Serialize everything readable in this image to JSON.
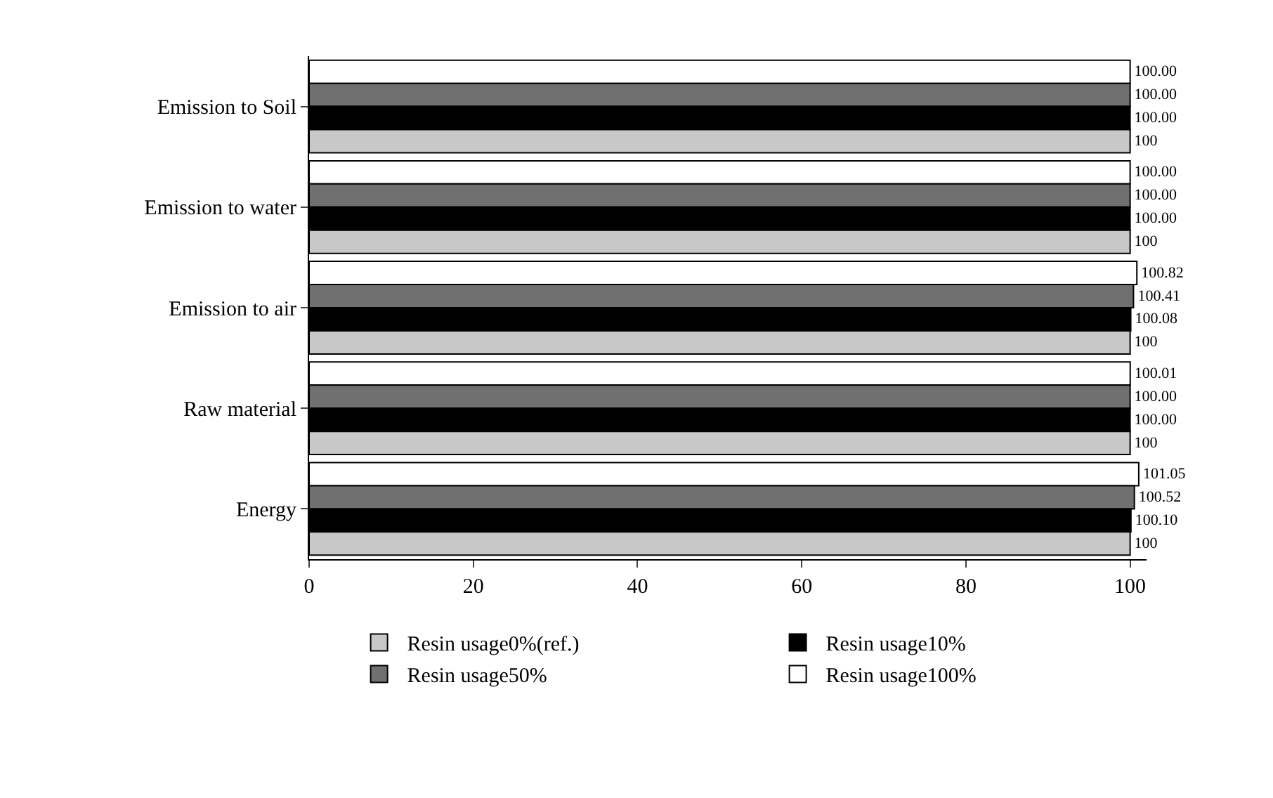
{
  "chart_data": {
    "type": "bar",
    "orientation": "horizontal",
    "categories": [
      "Emission to Soil",
      "Emission to water",
      "Emission to air",
      "Raw material",
      "Energy"
    ],
    "series": [
      {
        "name": "Resin usage100%",
        "color": "#ffffff",
        "values": [
          100.0,
          100.0,
          100.82,
          100.01,
          101.05
        ],
        "value_labels": [
          "100.00",
          "100.00",
          "100.82",
          "100.01",
          "101.05"
        ]
      },
      {
        "name": "Resin usage50%",
        "color": "#707070",
        "values": [
          100.0,
          100.0,
          100.41,
          100.0,
          100.52
        ],
        "value_labels": [
          "100.00",
          "100.00",
          "100.41",
          "100.00",
          "100.52"
        ]
      },
      {
        "name": "Resin usage10%",
        "color": "#000000",
        "values": [
          100.0,
          100.0,
          100.08,
          100.0,
          100.1
        ],
        "value_labels": [
          "100.00",
          "100.00",
          "100.08",
          "100.00",
          "100.10"
        ]
      },
      {
        "name": "Resin usage0%(ref.)",
        "color": "#c8c8c8",
        "values": [
          100,
          100,
          100,
          100,
          100
        ],
        "value_labels": [
          "100",
          "100",
          "100",
          "100",
          "100"
        ]
      }
    ],
    "xlim": [
      0,
      102
    ],
    "xticks": [
      0,
      20,
      40,
      60,
      80,
      100
    ],
    "grid": false,
    "legend": "bottom"
  }
}
